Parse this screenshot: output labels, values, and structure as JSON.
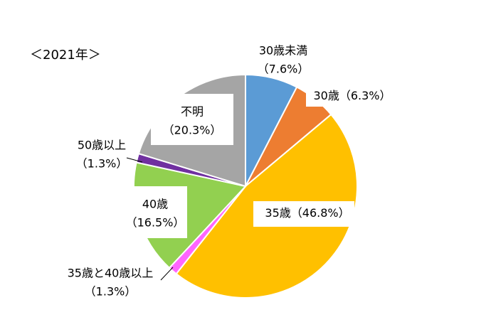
{
  "chart_data": {
    "type": "pie",
    "title": "＜2021年＞",
    "categories": [
      "30歳未満",
      "30歳",
      "35歳",
      "35歳と40歳以上",
      "40歳",
      "50歳以上",
      "不明"
    ],
    "values": [
      7.6,
      6.3,
      46.8,
      1.3,
      16.5,
      1.3,
      20.3
    ],
    "value_labels": [
      "（7.6%）",
      "（6.3%）",
      "（46.8%）",
      "（1.3%）",
      "（16.5%）",
      "（1.3%）",
      "（20.3%）"
    ],
    "colors": [
      "#5b9bd5",
      "#ed7d31",
      "#ffc000",
      "#ff66ff",
      "#92d050",
      "#7030a0",
      "#a5a5a5"
    ]
  }
}
